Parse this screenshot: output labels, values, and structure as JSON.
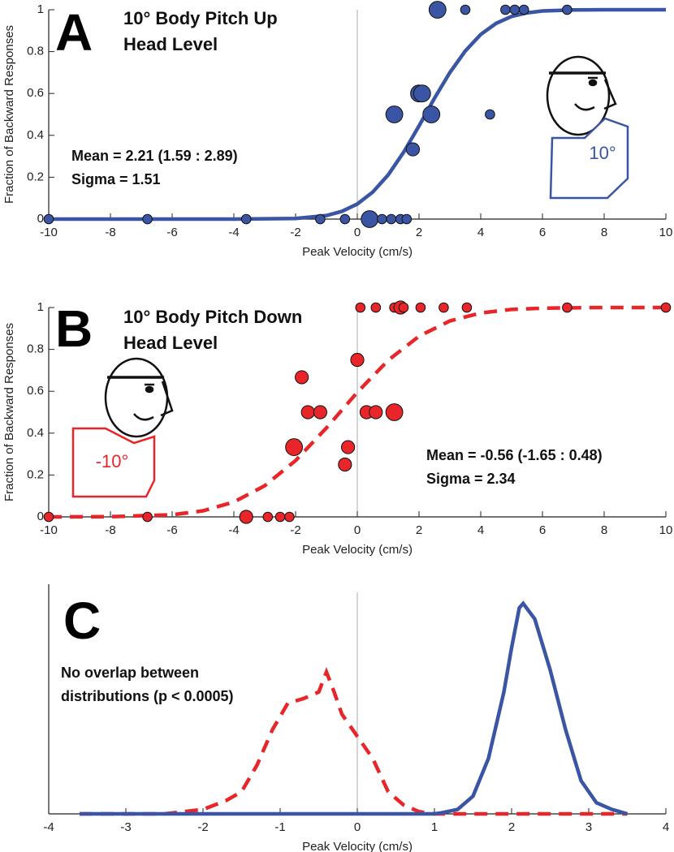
{
  "chart_data": [
    {
      "type": "scatter",
      "panel_label": "A",
      "title": "10° Body Pitch Up",
      "subtitle": "Head Level",
      "annotations": [
        "Mean = 2.21 (1.59 : 2.89)",
        "Sigma = 1.51"
      ],
      "head_label": "10°",
      "xlabel": "Peak Velocity (cm/s)",
      "ylabel": "Fraction of Backward Responses",
      "xlim": [
        -10,
        10
      ],
      "xticks": [
        -10,
        -8,
        -6,
        -4,
        -2,
        0,
        2,
        4,
        6,
        8,
        10
      ],
      "ylim": [
        0,
        1
      ],
      "yticks": [
        0,
        0.2,
        0.4,
        0.6,
        0.8,
        1
      ],
      "points": {
        "color": "#3a55a4",
        "x": [
          2.6,
          3.5,
          4.8,
          5.1,
          5.4,
          6.8,
          2.0,
          2.1,
          1.2,
          2.4,
          4.3,
          1.8,
          -10,
          -6.8,
          -3.6,
          -1.2,
          -0.4,
          0.4,
          0.8,
          1.1,
          1.4,
          1.6
        ],
        "values": [
          1,
          1,
          1,
          1,
          1,
          1,
          0.6,
          0.6,
          0.5,
          0.5,
          0.5,
          0.333,
          0,
          0,
          0,
          0,
          0,
          0,
          0,
          0,
          0,
          0
        ],
        "sizes": [
          3,
          1,
          1,
          1,
          1,
          1,
          3,
          3,
          3,
          3,
          1,
          2,
          1,
          1,
          1,
          1,
          1,
          3,
          1,
          1,
          1,
          1
        ]
      },
      "fit": {
        "color": "#3a55a4",
        "dash": false,
        "x": [
          -10,
          -4,
          -2,
          -1,
          -0.5,
          0,
          0.5,
          1,
          1.5,
          2,
          2.5,
          3,
          3.5,
          4,
          4.5,
          5,
          5.5,
          6,
          7,
          8,
          10
        ],
        "values": [
          0,
          0,
          0.003,
          0.017,
          0.037,
          0.072,
          0.129,
          0.211,
          0.319,
          0.445,
          0.577,
          0.7,
          0.803,
          0.882,
          0.935,
          0.968,
          0.985,
          0.994,
          0.999,
          1,
          1
        ]
      }
    },
    {
      "type": "scatter",
      "panel_label": "B",
      "title": "10° Body Pitch Down",
      "subtitle": "Head Level",
      "annotations": [
        "Mean = -0.56 (-1.65 : 0.48)",
        "Sigma = 2.34"
      ],
      "head_label": "-10°",
      "xlabel": "Peak Velocity (cm/s)",
      "ylabel": "Fraction of Backward Responses",
      "xlim": [
        -10,
        10
      ],
      "xticks": [
        -10,
        -8,
        -6,
        -4,
        -2,
        0,
        2,
        4,
        6,
        8,
        10
      ],
      "ylim": [
        0,
        1
      ],
      "yticks": [
        0,
        0.2,
        0.4,
        0.6,
        0.8,
        1
      ],
      "points": {
        "color": "#e8262a",
        "x": [
          0.1,
          0.6,
          1.2,
          1.4,
          1.5,
          2.05,
          2.8,
          3.55,
          6.8,
          10,
          0.0,
          -1.8,
          -1.6,
          -1.2,
          0.3,
          0.6,
          1.2,
          -2.05,
          -0.3,
          -0.4,
          -10,
          -6.8,
          -3.6,
          -2.9,
          -2.5,
          -2.2
        ],
        "values": [
          1,
          1,
          1,
          1,
          1,
          1,
          1,
          1,
          1,
          1,
          0.75,
          0.667,
          0.5,
          0.5,
          0.5,
          0.5,
          0.5,
          0.333,
          0.333,
          0.25,
          0,
          0,
          0,
          0,
          0,
          0
        ],
        "sizes": [
          1,
          1,
          1,
          2,
          1,
          1,
          1,
          1,
          1,
          1,
          2,
          2,
          2,
          2,
          2,
          2,
          3,
          3,
          2,
          2,
          1,
          1,
          2,
          1,
          1,
          1
        ]
      },
      "fit": {
        "color": "#e8262a",
        "dash": true,
        "x": [
          -10,
          -8,
          -6,
          -5,
          -4,
          -3,
          -2,
          -1,
          0,
          1,
          2,
          3,
          4,
          5,
          6,
          8,
          10
        ],
        "values": [
          0,
          0.001,
          0.01,
          0.029,
          0.071,
          0.149,
          0.269,
          0.425,
          0.595,
          0.748,
          0.863,
          0.936,
          0.974,
          0.991,
          0.997,
          1,
          1
        ]
      }
    },
    {
      "type": "line",
      "panel_label": "C",
      "annotations": [
        "No overlap between",
        "distributions (p < 0.0005)"
      ],
      "xlabel": "Peak Velocity (cm/s)",
      "xlim": [
        -4,
        4
      ],
      "xticks": [
        -4,
        -3,
        -2,
        -1,
        0,
        1,
        2,
        3,
        4
      ],
      "ylim": [
        0,
        1
      ],
      "series": [
        {
          "color": "#e8262a",
          "dash": true,
          "x": [
            -3.6,
            -2.5,
            -2.0,
            -1.7,
            -1.5,
            -1.3,
            -1.1,
            -0.9,
            -0.7,
            -0.5,
            -0.4,
            -0.3,
            -0.2,
            0,
            0.2,
            0.4,
            0.6,
            0.8,
            1.0,
            3.5
          ],
          "values": [
            0,
            0,
            0.02,
            0.06,
            0.1,
            0.22,
            0.38,
            0.5,
            0.52,
            0.55,
            0.64,
            0.55,
            0.45,
            0.35,
            0.25,
            0.1,
            0.04,
            0.01,
            0,
            0
          ]
        },
        {
          "color": "#3a55a4",
          "dash": false,
          "x": [
            -3.6,
            1.0,
            1.1,
            1.3,
            1.5,
            1.7,
            1.9,
            2.0,
            2.1,
            2.15,
            2.3,
            2.5,
            2.7,
            2.9,
            3.1,
            3.3,
            3.5
          ],
          "values": [
            0,
            0,
            0.005,
            0.02,
            0.08,
            0.25,
            0.55,
            0.75,
            0.93,
            0.95,
            0.88,
            0.65,
            0.38,
            0.15,
            0.05,
            0.02,
            0
          ]
        }
      ]
    }
  ]
}
